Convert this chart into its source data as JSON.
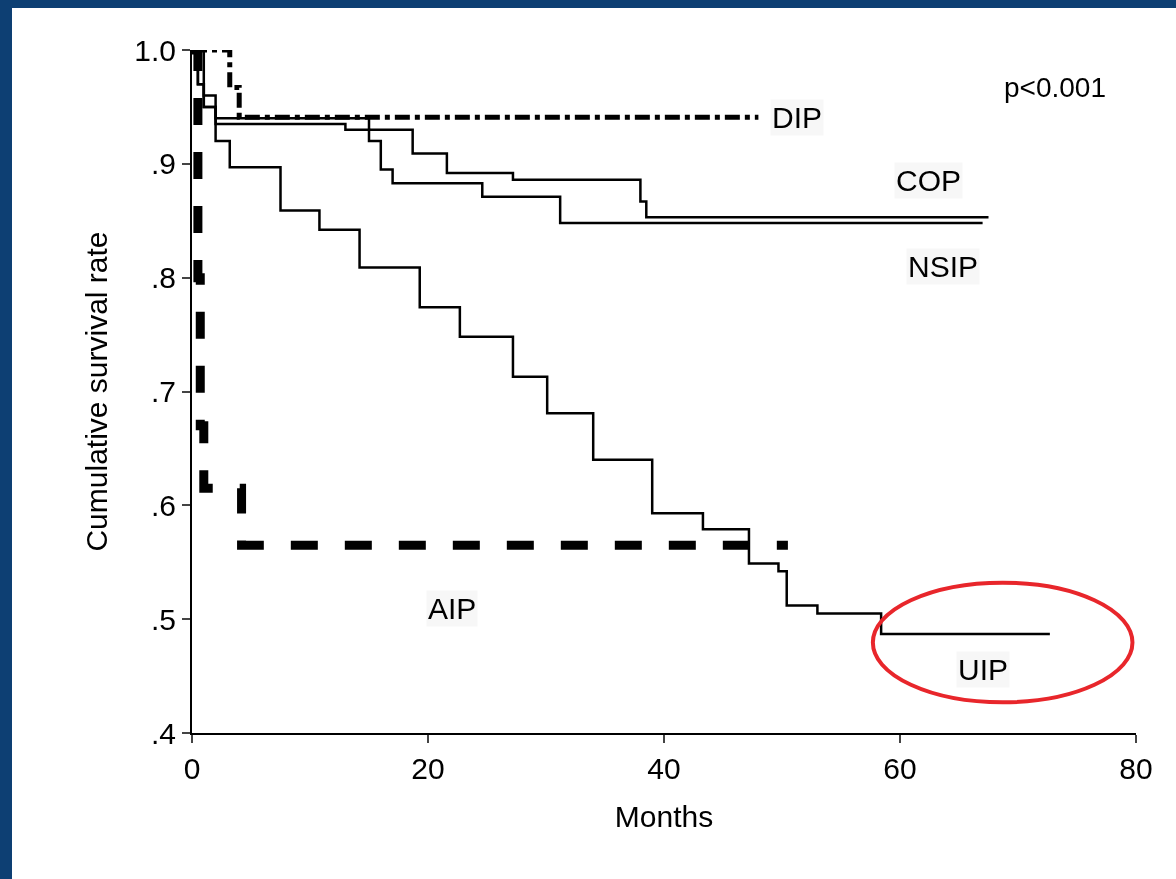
{
  "chart_data": {
    "type": "step",
    "xlabel": "Months",
    "ylabel": "Cumulative survival rate",
    "xlim": [
      0,
      80
    ],
    "xticks": [
      0,
      20,
      40,
      60,
      80
    ],
    "ylim": [
      0.4,
      1.0
    ],
    "yticks": [
      {
        "value": 0.4,
        "label": ".4"
      },
      {
        "value": 0.5,
        "label": ".5"
      },
      {
        "value": 0.6,
        "label": ".6"
      },
      {
        "value": 0.7,
        "label": ".7"
      },
      {
        "value": 0.8,
        "label": ".8"
      },
      {
        "value": 0.9,
        "label": ".9"
      },
      {
        "value": 1,
        "label": "1.0"
      }
    ],
    "grid": false,
    "legend": false,
    "marker": "none",
    "annotations": [
      "p<0.001"
    ],
    "series": [
      {
        "name": "DIP",
        "color": "#000000",
        "line_style": "dashdot",
        "x": [
          0,
          3.2,
          4,
          48
        ],
        "values": [
          1,
          0.967,
          0.941,
          0.941
        ]
      },
      {
        "name": "COP",
        "color": "#000000",
        "line_style": "solid",
        "x": [
          0,
          1,
          2,
          15,
          18.7,
          21.6,
          27.2,
          38,
          38.5,
          67.5
        ],
        "values": [
          1,
          0.96,
          0.94,
          0.93,
          0.909,
          0.892,
          0.886,
          0.867,
          0.853,
          0.853
        ]
      },
      {
        "name": "NSIP",
        "color": "#000000",
        "line_style": "solid",
        "x": [
          0,
          0.5,
          1,
          2,
          13,
          15,
          16,
          17,
          24.4,
          24.6,
          31,
          31.2,
          67
        ],
        "values": [
          1,
          0.97,
          0.95,
          0.935,
          0.93,
          0.92,
          0.895,
          0.883,
          0.883,
          0.871,
          0.871,
          0.848,
          0.848
        ]
      },
      {
        "name": "AIP",
        "color": "#000000",
        "line_style": "dashed",
        "x": [
          0,
          0.5,
          0.7,
          1,
          4,
          4.2,
          50.5
        ],
        "values": [
          1,
          0.8,
          0.67,
          0.615,
          0.615,
          0.565,
          0.565
        ]
      },
      {
        "name": "UIP",
        "color": "#000000",
        "line_style": "solid",
        "x": [
          0,
          0.5,
          1,
          2,
          3.2,
          7.5,
          10.8,
          14.2,
          19.3,
          22.7,
          27.2,
          30.1,
          34,
          39,
          43.3,
          47.2,
          49.7,
          50.4,
          53,
          58.2,
          58.4,
          72.7
        ],
        "values": [
          1,
          0.97,
          0.95,
          0.92,
          0.897,
          0.859,
          0.842,
          0.809,
          0.774,
          0.748,
          0.713,
          0.681,
          0.64,
          0.593,
          0.579,
          0.549,
          0.542,
          0.512,
          0.505,
          0.505,
          0.487,
          0.487
        ]
      }
    ]
  }
}
